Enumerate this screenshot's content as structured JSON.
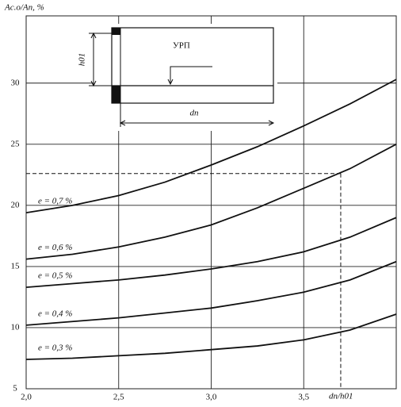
{
  "chart_data": {
    "type": "line",
    "x_label": "dп/h01",
    "y_label": "Aс.о/Aп, %",
    "x": [
      2.0,
      2.25,
      2.5,
      2.75,
      3.0,
      3.25,
      3.5,
      3.75,
      4.0
    ],
    "series": [
      {
        "name": "e = 0,7 %",
        "color": "#111111",
        "values": [
          19.4,
          20.0,
          20.8,
          21.9,
          23.3,
          24.8,
          26.5,
          28.3,
          30.3
        ]
      },
      {
        "name": "e = 0,6 %",
        "color": "#111111",
        "values": [
          15.6,
          16.0,
          16.6,
          17.4,
          18.4,
          19.8,
          21.4,
          23.0,
          25.0
        ]
      },
      {
        "name": "e = 0,5 %",
        "color": "#111111",
        "values": [
          13.3,
          13.6,
          13.9,
          14.3,
          14.8,
          15.4,
          16.2,
          17.4,
          19.0
        ]
      },
      {
        "name": "e = 0,4 %",
        "color": "#111111",
        "values": [
          10.2,
          10.5,
          10.8,
          11.2,
          11.6,
          12.2,
          12.9,
          13.9,
          15.4
        ]
      },
      {
        "name": "e = 0,3 %",
        "color": "#111111",
        "values": [
          7.4,
          7.5,
          7.7,
          7.9,
          8.2,
          8.5,
          9.0,
          9.8,
          11.1
        ]
      }
    ],
    "xlim": [
      2.0,
      4.0
    ],
    "ylim": [
      5,
      35.5
    ],
    "xticks": [
      {
        "value": 2.0,
        "label": "2,0"
      },
      {
        "value": 2.5,
        "label": "2,5"
      },
      {
        "value": 3.0,
        "label": "3,0"
      },
      {
        "value": 3.5,
        "label": "3,5"
      }
    ],
    "yticks": [
      5,
      10,
      15,
      20,
      25,
      30
    ],
    "grid": true,
    "reference": {
      "x": 3.7,
      "y": 22.6
    },
    "inset_labels": {
      "h": "h01",
      "urp": "УРП",
      "d": "dп"
    }
  }
}
